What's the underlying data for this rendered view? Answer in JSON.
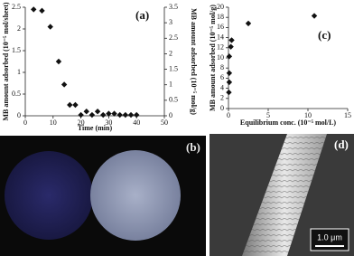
{
  "chart_data": [
    {
      "type": "scatter",
      "panel_label": "(a)",
      "x_label": "Time (min)",
      "y_label": "MB amount adsorbed (10⁻⁵ mol/sheet)",
      "y2_label": "MB amount adsorbed (10⁻⁵ mol/g)",
      "x": [
        3,
        6,
        9,
        12,
        14,
        16,
        18,
        20,
        22,
        24,
        26,
        28,
        30,
        32,
        34,
        36,
        38,
        40
      ],
      "values": [
        2.45,
        2.42,
        2.05,
        1.25,
        0.72,
        0.25,
        0.25,
        0.02,
        0.1,
        0.02,
        0.1,
        0.02,
        0.05,
        0.05,
        0.02,
        0.02,
        0.02,
        0.02
      ],
      "color": "#111111",
      "xlim": [
        0,
        50
      ],
      "xticks": [
        0,
        10,
        20,
        30,
        40,
        50
      ],
      "ylim": [
        0,
        2.5
      ],
      "yticks": [
        0,
        0.5,
        1,
        1.5,
        2,
        2.5
      ],
      "y2lim": [
        0,
        3.5
      ],
      "y2ticks": [
        0,
        0.5,
        1,
        1.5,
        2,
        2.5,
        3,
        3.5
      ]
    },
    {
      "type": "scatter",
      "panel_label": "(c)",
      "x_label": "Equilibrium conc. (10⁻⁵ mol/L)",
      "y_label": "MB amount adsorbed (10⁻⁵ mol/g)",
      "x": [
        0.05,
        0.1,
        0.1,
        0.1,
        0.3,
        0.4,
        2.5,
        10.8
      ],
      "values": [
        3.2,
        5.2,
        7,
        10.3,
        12.2,
        13.5,
        16.8,
        18.3
      ],
      "color": "#111111",
      "xlim": [
        0,
        15
      ],
      "xticks": [
        0,
        5,
        10,
        15
      ],
      "ylim": [
        0,
        20
      ],
      "yticks": [
        0,
        2,
        4,
        6,
        8,
        10,
        12,
        14,
        16,
        18,
        20
      ]
    }
  ],
  "panels": {
    "b": {
      "label": "(b)"
    },
    "d": {
      "label": "(d)",
      "scale_bar": "1.0 μm"
    }
  }
}
